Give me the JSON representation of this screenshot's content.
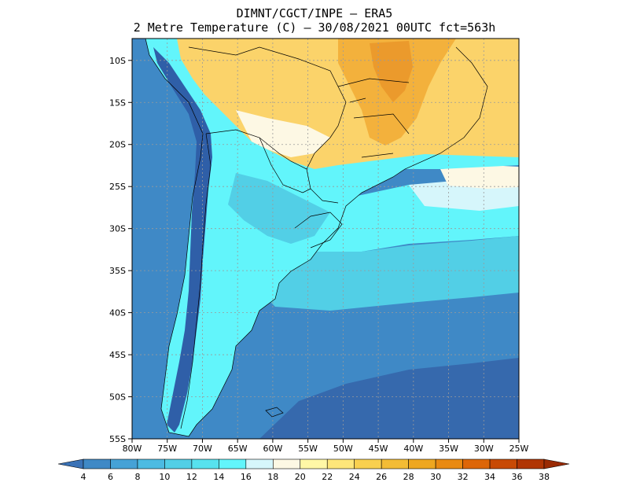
{
  "title_line1": "DIMNT/CGCT/INPE –  ERA5",
  "title_line2": "2 Metre Temperature (C) –  30/08/2021 00UTC fct=563h",
  "lat_labels": [
    "10S",
    "15S",
    "20S",
    "25S",
    "30S",
    "35S",
    "40S",
    "45S",
    "50S",
    "55S"
  ],
  "lon_labels": [
    "80W",
    "75W",
    "70W",
    "65W",
    "60W",
    "55W",
    "50W",
    "45W",
    "40W",
    "35W",
    "30W",
    "25W"
  ],
  "colorbar": {
    "labels": [
      "4",
      "6",
      "8",
      "10",
      "12",
      "14",
      "16",
      "18",
      "20",
      "22",
      "24",
      "26",
      "28",
      "30",
      "32",
      "34",
      "36",
      "38"
    ],
    "colors": [
      "#3a72b6",
      "#3f89c6",
      "#46a2d6",
      "#4cbbe2",
      "#52cfe6",
      "#57e2ee",
      "#62f5fb",
      "#d6f6fb",
      "#fdf8e4",
      "#fff7a6",
      "#fee67a",
      "#f9d04f",
      "#f3bc35",
      "#eea720",
      "#e98a12",
      "#dd6608",
      "#c84a05",
      "#b03504",
      "#9a2a03"
    ]
  },
  "colors": {
    "ocean_far": "#3669ad",
    "ocean_mid": "#3f89c6",
    "ocean_cold": "#46a2d6",
    "ocean_mild": "#52cfe6",
    "ocean_warm": "#62f5fb",
    "andes": "#2f5fa8",
    "pale_cyan": "#d6f6fb",
    "cream": "#fdf8e4",
    "light_yellow": "#fff3a0",
    "yellow": "#fbd36a",
    "orange": "#f3b13c",
    "hot": "#eb9a2c"
  }
}
